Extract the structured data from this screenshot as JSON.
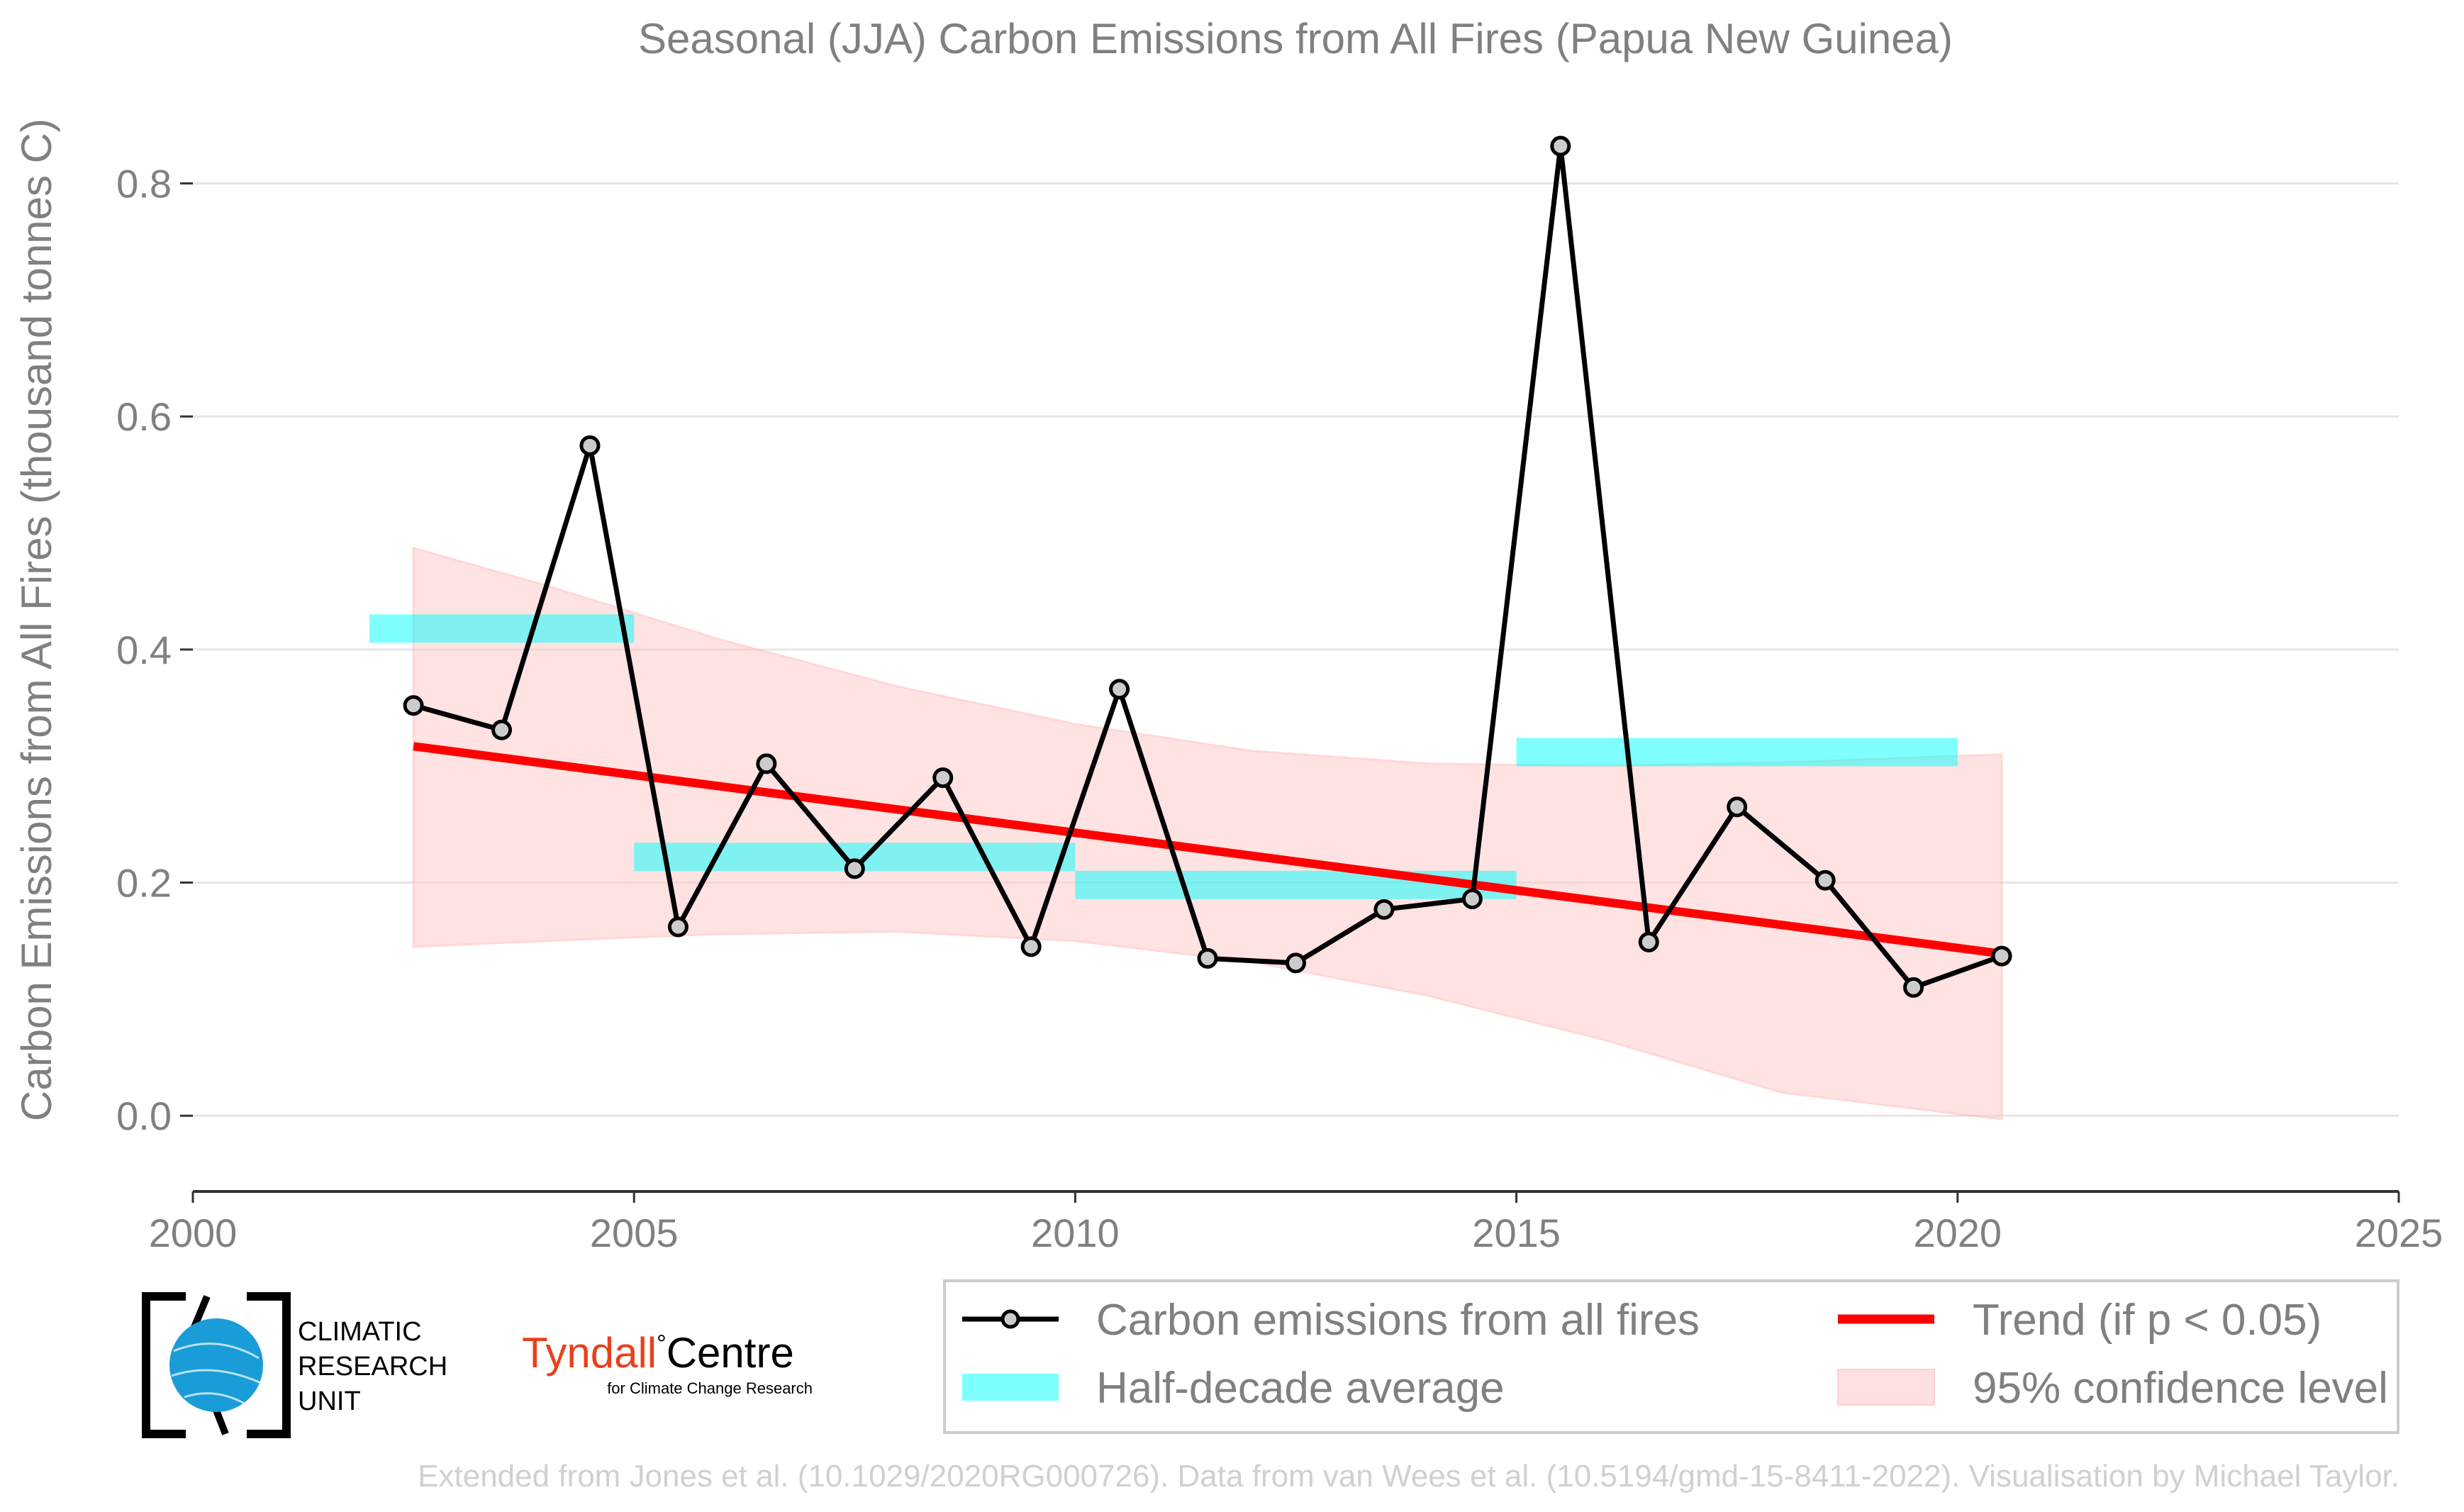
{
  "chart_data": {
    "type": "line",
    "title": "Seasonal (JJA) Carbon Emissions from All Fires (Papua New Guinea)",
    "xlabel": "",
    "ylabel": "Carbon Emissions from All Fires (thousand tonnes C)",
    "xlim": [
      2000,
      2025
    ],
    "ylim": [
      -0.065,
      0.86
    ],
    "x_ticks": [
      2000,
      2005,
      2010,
      2015,
      2020,
      2025
    ],
    "y_ticks": [
      0.0,
      0.2,
      0.4,
      0.6,
      0.8
    ],
    "y_tick_labels": [
      "0.0",
      "0.2",
      "0.4",
      "0.6",
      "0.8"
    ],
    "grid": "horizontal",
    "legend_position": "bottom-right",
    "series": [
      {
        "name": "Carbon emissions from all fires",
        "color": "#000000",
        "marker_fill": "#cccccc",
        "x": [
          2002.5,
          2003.5,
          2004.5,
          2005.5,
          2006.5,
          2007.5,
          2008.5,
          2009.5,
          2010.5,
          2011.5,
          2012.5,
          2013.5,
          2014.5,
          2015.5,
          2016.5,
          2017.5,
          2018.5,
          2019.5,
          2020.5
        ],
        "values": [
          0.352,
          0.331,
          0.575,
          0.162,
          0.302,
          0.212,
          0.29,
          0.145,
          0.366,
          0.135,
          0.131,
          0.177,
          0.186,
          0.832,
          0.149,
          0.265,
          0.202,
          0.11,
          0.137
        ]
      }
    ],
    "half_decade_average": {
      "name": "Half-decade average",
      "color": "#00ffff",
      "segments": [
        {
          "x0": 2002,
          "x1": 2005,
          "value": 0.418
        },
        {
          "x0": 2005,
          "x1": 2010,
          "value": 0.222
        },
        {
          "x0": 2010,
          "x1": 2015,
          "value": 0.198
        },
        {
          "x0": 2015,
          "x1": 2020,
          "value": 0.312
        }
      ]
    },
    "trend": {
      "name": "Trend (if p < 0.05)",
      "color": "#ff0000",
      "x": [
        2002.5,
        2020.5
      ],
      "values": [
        0.317,
        0.139
      ]
    },
    "confidence_band": {
      "name": "95% confidence level",
      "color": "#ffcccc",
      "x": [
        2002.5,
        2004,
        2006,
        2008,
        2010,
        2012,
        2014,
        2016,
        2018,
        2020.5
      ],
      "upper": [
        0.487,
        0.455,
        0.408,
        0.368,
        0.336,
        0.313,
        0.302,
        0.3,
        0.303,
        0.31
      ],
      "lower": [
        0.145,
        0.15,
        0.156,
        0.158,
        0.15,
        0.132,
        0.103,
        0.065,
        0.02,
        -0.003
      ]
    }
  },
  "logos": {
    "cru_line1": "CLIMATIC",
    "cru_line2": "RESEARCH",
    "cru_line3": "UNIT",
    "tyndall_main": "Tyndall",
    "tyndall_degree": "°",
    "tyndall_centre": "Centre",
    "tyndall_sub": "for Climate Change Research"
  },
  "footer": "Extended from Jones et al. (10.1029/2020RG000726). Data from van Wees et al. (10.5194/gmd-15-8411-2022). Visualisation by Michael Taylor."
}
